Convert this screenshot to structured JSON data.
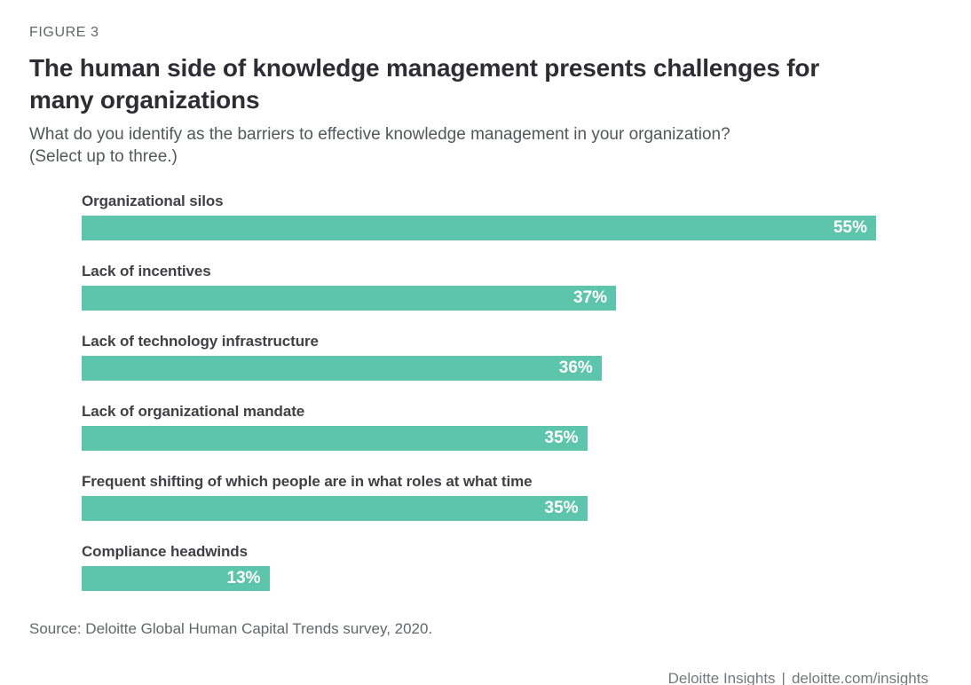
{
  "figure_label": "FIGURE 3",
  "title_lines": [
    "The human side of knowledge management presents challenges for",
    "many organizations"
  ],
  "subtitle_lines": [
    "What do you identify as the barriers to effective knowledge management in your organization?",
    "(Select up to three.)"
  ],
  "source": "Source: Deloitte Global Human Capital Trends survey, 2020.",
  "footer": {
    "brand": "Deloitte Insights",
    "separator": "|",
    "url": "deloitte.com/insights"
  },
  "colors": {
    "bar": "#5dc5ab",
    "value-text": "#ffffff",
    "title": "#2d2d33",
    "label": "#404046",
    "subtitle": "#53565a",
    "muted": "#63666a",
    "footer": "#75787b"
  },
  "chart_data": {
    "type": "bar",
    "orientation": "horizontal",
    "title": "The human side of knowledge management presents challenges for many organizations",
    "subtitle": "What do you identify as the barriers to effective knowledge management in your organization? (Select up to three.)",
    "categories": [
      "Organizational silos",
      "Lack of incentives",
      "Lack of technology infrastructure",
      "Lack of organizational mandate",
      "Frequent shifting of which people are in what roles at what time",
      "Compliance headwinds"
    ],
    "values": [
      55,
      37,
      36,
      35,
      35,
      13
    ],
    "value_labels": [
      "55%",
      "37%",
      "36%",
      "35%",
      "35%",
      "13%"
    ],
    "value_suffix": "%",
    "xlim": [
      0,
      55
    ],
    "grid": false,
    "legend": false,
    "value_label_position": "inside-end",
    "xlabel": "",
    "ylabel": ""
  }
}
